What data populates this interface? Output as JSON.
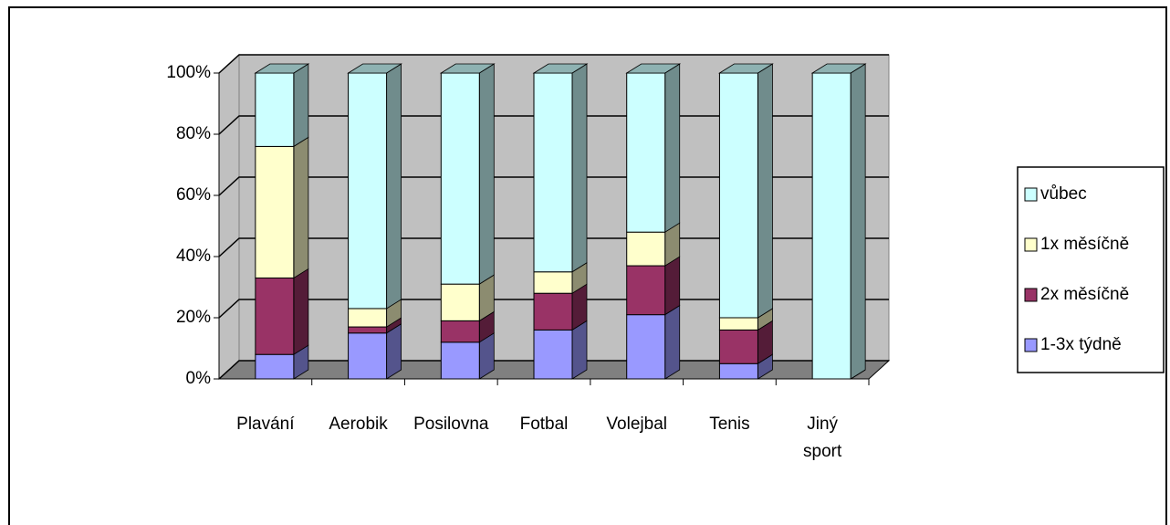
{
  "chart_data": {
    "type": "bar",
    "stacked": true,
    "categories": [
      "Plavání",
      "Aerobik",
      "Posilovna",
      "Fotbal",
      "Volejbal",
      "Tenis",
      "Jiný sport"
    ],
    "series": [
      {
        "name": "1-3x týdně",
        "color": "#9999ff",
        "values": [
          8,
          15,
          12,
          16,
          21,
          5,
          0
        ]
      },
      {
        "name": "2x měsíčně",
        "color": "#993366",
        "values": [
          25,
          2,
          7,
          12,
          16,
          11,
          0
        ]
      },
      {
        "name": "1x měsíčně",
        "color": "#ffffcc",
        "values": [
          43,
          6,
          12,
          7,
          11,
          4,
          0
        ]
      },
      {
        "name": "vůbec",
        "color": "#ccffff",
        "values": [
          24,
          77,
          69,
          65,
          52,
          80,
          100
        ]
      }
    ],
    "ylim": [
      0,
      100
    ],
    "yticks": [
      {
        "value": 0,
        "label": "0%"
      },
      {
        "value": 20,
        "label": "20%"
      },
      {
        "value": 40,
        "label": "40%"
      },
      {
        "value": 60,
        "label": "60%"
      },
      {
        "value": 80,
        "label": "80%"
      },
      {
        "value": 100,
        "label": "100%"
      }
    ],
    "grid": true,
    "legend": "right"
  }
}
